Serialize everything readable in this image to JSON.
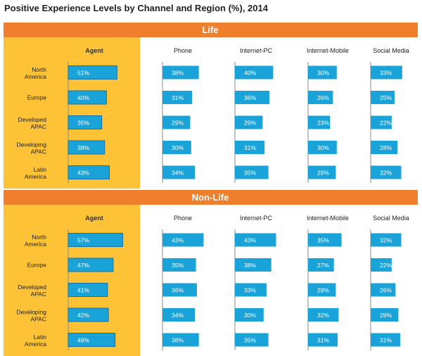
{
  "title": "Positive Experience Levels by Channel and Region (%), 2014",
  "colors": {
    "header_orange": "#f07f2d",
    "agent_panel": "#fdc235",
    "bar_blue": "#1aa3d9",
    "bar_outline": "#1570a6",
    "axis_gray": "#8a8a8a"
  },
  "chart_data": [
    {
      "type": "bar",
      "title": "Life",
      "categories": [
        "North America",
        "Europe",
        "Developed APAC",
        "Developing APAC",
        "Latin America"
      ],
      "category_lines": [
        [
          "North",
          "America"
        ],
        [
          "Europe"
        ],
        [
          "Developed",
          "APAC"
        ],
        [
          "Developing",
          "APAC"
        ],
        [
          "Latin",
          "America"
        ]
      ],
      "series": [
        {
          "name": "Agent",
          "values": [
            51,
            40,
            35,
            38,
            43
          ]
        },
        {
          "name": "Phone",
          "values": [
            38,
            31,
            29,
            30,
            34
          ]
        },
        {
          "name": "Internet-PC",
          "values": [
            40,
            36,
            29,
            31,
            35
          ]
        },
        {
          "name": "Internet-Mobile",
          "values": [
            30,
            26,
            23,
            30,
            29
          ]
        },
        {
          "name": "Social Media",
          "values": [
            33,
            25,
            22,
            28,
            32
          ]
        }
      ],
      "value_format": "{v}%"
    },
    {
      "type": "bar",
      "title": "Non-Life",
      "categories": [
        "North America",
        "Europe",
        "Developed APAC",
        "Developing APAC",
        "Latin America"
      ],
      "category_lines": [
        [
          "North",
          "America"
        ],
        [
          "Europe"
        ],
        [
          "Developed",
          "APAC"
        ],
        [
          "Developing",
          "APAC"
        ],
        [
          "Latin",
          "America"
        ]
      ],
      "series": [
        {
          "name": "Agent",
          "values": [
            57,
            47,
            41,
            42,
            49
          ]
        },
        {
          "name": "Phone",
          "values": [
            43,
            35,
            36,
            34,
            38
          ]
        },
        {
          "name": "Internet-PC",
          "values": [
            43,
            38,
            33,
            30,
            35
          ]
        },
        {
          "name": "Internet-Mobile",
          "values": [
            35,
            27,
            29,
            32,
            31
          ]
        },
        {
          "name": "Social Media",
          "values": [
            32,
            22,
            26,
            29,
            31
          ]
        }
      ],
      "value_format": "{v}%"
    }
  ]
}
